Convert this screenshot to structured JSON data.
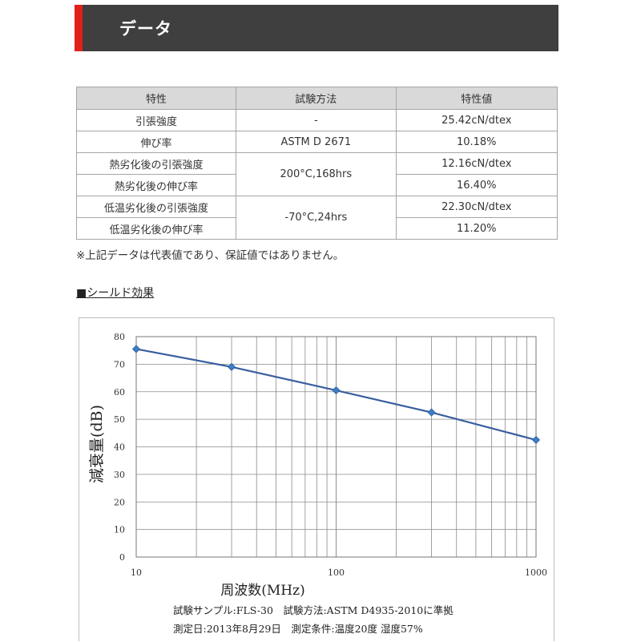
{
  "header": {
    "title": "データ"
  },
  "table": {
    "headers": [
      "特性",
      "試験方法",
      "特性値"
    ],
    "rows": [
      {
        "property": "引張強度",
        "method": "-",
        "value": "25.42cN/dtex"
      },
      {
        "property": "伸び率",
        "method": "ASTM D 2671",
        "value": "10.18%"
      },
      {
        "property": "熱劣化後の引張強度",
        "method": "200°C,168hrs",
        "value": "12.16cN/dtex"
      },
      {
        "property": "熱劣化後の伸び率",
        "value": "16.40%"
      },
      {
        "property": "低温劣化後の引張強度",
        "method": "-70°C,24hrs",
        "value": "22.30cN/dtex"
      },
      {
        "property": "低温劣化後の伸び率",
        "value": "11.20%"
      }
    ],
    "note": "※上記データは代表値であり、保証値ではありません。"
  },
  "section": {
    "heading": "■シールド効果"
  },
  "chart_data": {
    "type": "line",
    "xscale": "log",
    "xlim": [
      10,
      1000
    ],
    "ylim": [
      0,
      80
    ],
    "xticks": [
      "10",
      "100",
      "1000"
    ],
    "yticks": [
      "0",
      "10",
      "20",
      "30",
      "40",
      "50",
      "60",
      "70",
      "80"
    ],
    "xlabel": "周波数(MHz)",
    "ylabel": "減衰量(dB)",
    "grid": true,
    "series": [
      {
        "x": [
          10,
          30,
          100,
          300,
          1000
        ],
        "y": [
          75.5,
          69,
          60.5,
          52.5,
          42.5
        ],
        "color": "#3a5f9e",
        "marker_color": "#3d7cc9"
      }
    ],
    "captions": [
      "試験サンプル:FLS-30　試験方法:ASTM D4935-2010に準拠",
      "測定日:2013年8月29日　測定条件:温度20度 湿度57%"
    ]
  }
}
